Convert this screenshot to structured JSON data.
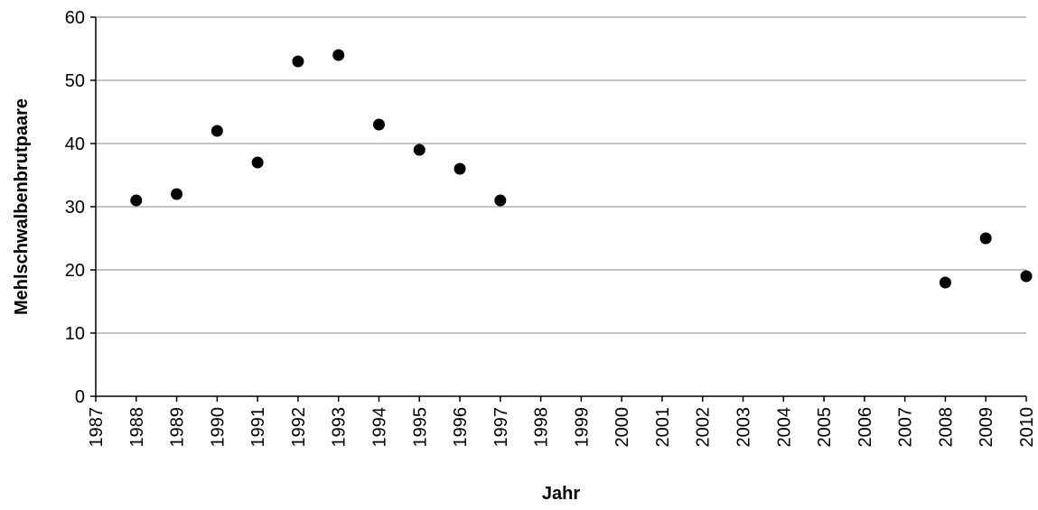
{
  "chart_data": {
    "type": "scatter",
    "xlabel": "Jahr",
    "ylabel": "Mehlschwalbenbrutpaare",
    "xlim": [
      1987,
      2010
    ],
    "ylim": [
      0,
      60
    ],
    "y_ticks": [
      0,
      10,
      20,
      30,
      40,
      50,
      60
    ],
    "x_ticks": [
      1987,
      1988,
      1989,
      1990,
      1991,
      1992,
      1993,
      1994,
      1995,
      1996,
      1997,
      1998,
      1999,
      2000,
      2001,
      2002,
      2003,
      2004,
      2005,
      2006,
      2007,
      2008,
      2009,
      2010
    ],
    "grid": "horizontal",
    "legend": "none",
    "series": [
      {
        "color": "#000000",
        "points": [
          {
            "x": 1988,
            "y": 31
          },
          {
            "x": 1989,
            "y": 32
          },
          {
            "x": 1990,
            "y": 42
          },
          {
            "x": 1991,
            "y": 37
          },
          {
            "x": 1992,
            "y": 53
          },
          {
            "x": 1993,
            "y": 54
          },
          {
            "x": 1994,
            "y": 43
          },
          {
            "x": 1995,
            "y": 39
          },
          {
            "x": 1996,
            "y": 36
          },
          {
            "x": 1997,
            "y": 31
          },
          {
            "x": 2008,
            "y": 18
          },
          {
            "x": 2009,
            "y": 25
          },
          {
            "x": 2010,
            "y": 19
          }
        ]
      }
    ]
  }
}
